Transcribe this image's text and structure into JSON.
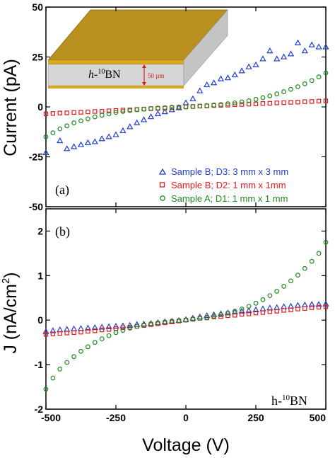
{
  "chart_data": [
    {
      "type": "scatter",
      "panel_label": "(a)",
      "ylabel": "Current (pA)",
      "xlim": [
        -500,
        500
      ],
      "ylim": [
        -50,
        50
      ],
      "yticks": [
        -50,
        -25,
        0,
        25,
        50
      ],
      "xticks": [
        -500,
        -250,
        0,
        250,
        500
      ],
      "legend_position": "bottom-right",
      "inset": {
        "material_label": "h-10BN",
        "material_prefix": "h-",
        "material_superscript": "10",
        "material_suffix": "BN",
        "thickness_label": "50 µm"
      },
      "series": [
        {
          "name": "Sample B; D3: 3 mm x 3 mm",
          "marker": "triangle",
          "color": "#1f3fd1",
          "x": [
            -500,
            -450,
            -425,
            -400,
            -375,
            -350,
            -325,
            -300,
            -275,
            -250,
            -225,
            -200,
            -175,
            -150,
            -125,
            -100,
            -75,
            -50,
            -25,
            0,
            25,
            50,
            75,
            100,
            125,
            150,
            175,
            200,
            225,
            250,
            275,
            300,
            325,
            350,
            375,
            400,
            425,
            450,
            475,
            500
          ],
          "y": [
            -23,
            -17,
            -21,
            -20,
            -19,
            -18,
            -17.5,
            -16,
            -15,
            -14,
            -12,
            -10,
            -8,
            -6.5,
            -5,
            -3.5,
            -2.5,
            -1.5,
            -0.5,
            2,
            4,
            8,
            11,
            12,
            14,
            14.5,
            16,
            18,
            20,
            21,
            24,
            28,
            24,
            25,
            26.5,
            32,
            28,
            31,
            30,
            30
          ]
        },
        {
          "name": "Sample B; D2: 1 mm x 1mm",
          "marker": "square",
          "color": "#e01a1a",
          "x": [
            -500,
            -475,
            -450,
            -425,
            -400,
            -375,
            -350,
            -325,
            -300,
            -275,
            -250,
            -225,
            -200,
            -175,
            -150,
            -125,
            -100,
            -75,
            -50,
            -25,
            0,
            25,
            50,
            75,
            100,
            125,
            150,
            175,
            200,
            225,
            250,
            275,
            300,
            325,
            350,
            375,
            400,
            425,
            450,
            475,
            500
          ],
          "y": [
            -3.5,
            -3.3,
            -3.1,
            -3,
            -2.8,
            -2.7,
            -2.5,
            -2.3,
            -2.2,
            -2,
            -1.8,
            -1.6,
            -1.5,
            -1.3,
            -1.1,
            -0.9,
            -0.8,
            -0.6,
            -0.4,
            -0.2,
            0,
            0.2,
            0.4,
            0.5,
            0.7,
            0.8,
            0.9,
            1.1,
            1.2,
            1.4,
            1.5,
            1.7,
            1.8,
            2,
            2.1,
            2.3,
            2.4,
            2.6,
            2.7,
            2.9,
            3
          ]
        },
        {
          "name": "Sample A; D1: 1 mm x 1 mm",
          "marker": "circle",
          "color": "#1f8c1f",
          "x": [
            -500,
            -475,
            -450,
            -425,
            -400,
            -375,
            -350,
            -325,
            -300,
            -275,
            -250,
            -225,
            -200,
            -175,
            -150,
            -125,
            -100,
            -75,
            -50,
            -25,
            0,
            25,
            50,
            75,
            100,
            125,
            150,
            175,
            200,
            225,
            250,
            275,
            300,
            325,
            350,
            375,
            400,
            425,
            450,
            475,
            500
          ],
          "y": [
            -15,
            -13,
            -11,
            -9.5,
            -8,
            -7,
            -6,
            -5,
            -4.2,
            -3.5,
            -2.8,
            -2.3,
            -1.8,
            -1.4,
            -1.1,
            -0.8,
            -0.6,
            -0.4,
            -0.2,
            -0.1,
            0,
            0.2,
            0.4,
            0.6,
            0.9,
            1.2,
            1.6,
            2,
            2.5,
            3.1,
            3.8,
            4.6,
            5.5,
            6.5,
            7.6,
            8.8,
            10.1,
            11.6,
            13.2,
            15,
            17
          ]
        }
      ]
    },
    {
      "type": "scatter",
      "panel_label": "(b)",
      "xlabel": "Voltage (V)",
      "ylabel": "J (nA/cm2)",
      "ylabel_main": "J (nA/cm",
      "ylabel_sup": "2",
      "ylabel_end": ")",
      "xlim": [
        -500,
        500
      ],
      "ylim": [
        -2,
        2.5
      ],
      "yticks": [
        -2,
        -1,
        0,
        1,
        2
      ],
      "xticks": [
        -500,
        -250,
        0,
        250,
        500
      ],
      "material_label": "h-10BN",
      "material_prefix": "h-",
      "material_superscript": "10",
      "material_suffix": "BN",
      "series": [
        {
          "marker": "triangle",
          "color": "#1f3fd1",
          "x": [
            -500,
            -475,
            -450,
            -425,
            -400,
            -375,
            -350,
            -325,
            -300,
            -275,
            -250,
            -225,
            -200,
            -175,
            -150,
            -125,
            -100,
            -75,
            -50,
            -25,
            0,
            25,
            50,
            75,
            100,
            125,
            150,
            175,
            200,
            225,
            250,
            275,
            300,
            325,
            350,
            375,
            400,
            425,
            450,
            475,
            500
          ],
          "y": [
            -0.26,
            -0.24,
            -0.22,
            -0.21,
            -0.2,
            -0.19,
            -0.18,
            -0.17,
            -0.16,
            -0.15,
            -0.14,
            -0.13,
            -0.12,
            -0.1,
            -0.09,
            -0.08,
            -0.06,
            -0.04,
            -0.03,
            -0.01,
            0.01,
            0.04,
            0.07,
            0.1,
            0.12,
            0.14,
            0.16,
            0.18,
            0.2,
            0.21,
            0.23,
            0.25,
            0.27,
            0.28,
            0.3,
            0.31,
            0.33,
            0.34,
            0.35,
            0.35,
            0.36
          ]
        },
        {
          "marker": "square",
          "color": "#e01a1a",
          "x": [
            -500,
            -475,
            -450,
            -425,
            -400,
            -375,
            -350,
            -325,
            -300,
            -275,
            -250,
            -225,
            -200,
            -175,
            -150,
            -125,
            -100,
            -75,
            -50,
            -25,
            0,
            25,
            50,
            75,
            100,
            125,
            150,
            175,
            200,
            225,
            250,
            275,
            300,
            325,
            350,
            375,
            400,
            425,
            450,
            475,
            500
          ],
          "y": [
            -0.32,
            -0.31,
            -0.3,
            -0.29,
            -0.28,
            -0.27,
            -0.25,
            -0.24,
            -0.22,
            -0.21,
            -0.19,
            -0.17,
            -0.16,
            -0.14,
            -0.12,
            -0.1,
            -0.08,
            -0.06,
            -0.04,
            -0.02,
            0,
            0.02,
            0.04,
            0.05,
            0.07,
            0.08,
            0.1,
            0.11,
            0.13,
            0.14,
            0.16,
            0.17,
            0.19,
            0.2,
            0.22,
            0.23,
            0.25,
            0.26,
            0.28,
            0.29,
            0.3
          ]
        },
        {
          "marker": "circle",
          "color": "#1f8c1f",
          "x": [
            -500,
            -475,
            -450,
            -425,
            -400,
            -375,
            -350,
            -325,
            -300,
            -275,
            -250,
            -225,
            -200,
            -175,
            -150,
            -125,
            -100,
            -75,
            -50,
            -25,
            0,
            25,
            50,
            75,
            100,
            125,
            150,
            175,
            200,
            225,
            250,
            275,
            300,
            325,
            350,
            375,
            400,
            425,
            450,
            475,
            500
          ],
          "y": [
            -1.55,
            -1.3,
            -1.1,
            -0.95,
            -0.82,
            -0.7,
            -0.6,
            -0.5,
            -0.42,
            -0.35,
            -0.28,
            -0.23,
            -0.18,
            -0.14,
            -0.11,
            -0.08,
            -0.06,
            -0.04,
            -0.02,
            -0.01,
            0,
            0.02,
            0.04,
            0.06,
            0.09,
            0.12,
            0.16,
            0.2,
            0.25,
            0.31,
            0.38,
            0.46,
            0.55,
            0.65,
            0.76,
            0.88,
            1.01,
            1.16,
            1.32,
            1.5,
            1.75
          ]
        }
      ]
    }
  ]
}
